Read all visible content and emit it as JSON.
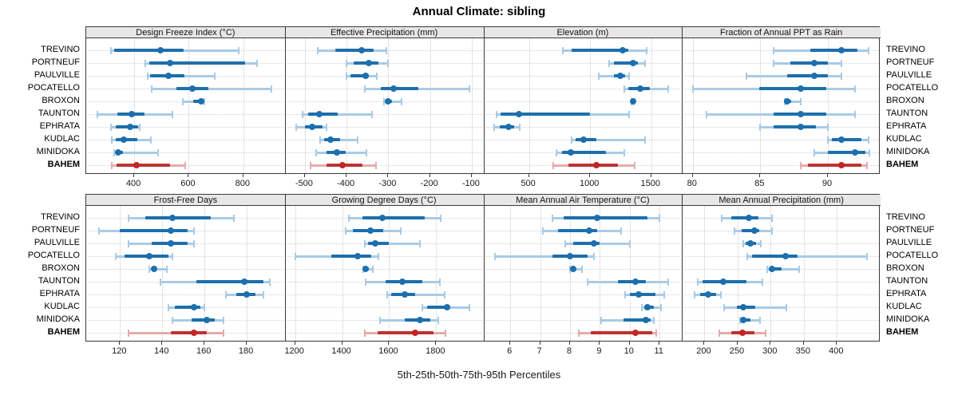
{
  "title": "Annual Climate: sibling",
  "caption": "5th-25th-50th-75th-95th Percentiles",
  "colors": {
    "blue_dark": "#1d6fad",
    "blue_light": "#a9cbe5",
    "blue_dot": "#1d6fad",
    "red_dark": "#bf3131",
    "red_light": "#e5abab",
    "red_dot": "#c32424",
    "grid": "#c9c9c9",
    "border": "#3a3a3a",
    "header_bg": "#e7e7e7"
  },
  "sites": [
    "TREVINO",
    "PORTNEUF",
    "PAULVILLE",
    "POCATELLO",
    "BROXON",
    "TAUNTON",
    "EPHRATA",
    "KUDLAC",
    "MINIDOKA",
    "BAHEM"
  ],
  "highlight_site": "BAHEM",
  "chart_data": {
    "type": "percentile-interval-dotplot",
    "percentiles": [
      5,
      25,
      50,
      75,
      95
    ],
    "rows": [
      "TREVINO",
      "PORTNEUF",
      "PAULVILLE",
      "POCATELLO",
      "BROXON",
      "TAUNTON",
      "EPHRATA",
      "KUDLAC",
      "MINIDOKA",
      "BAHEM"
    ],
    "legend": "thin light bar = 5th-95th, thick dark bar = 25th-75th, dot = 50th percentile; BAHEM drawn in red",
    "panels": [
      {
        "title": "Design Freeze Index (°C)",
        "grid_row": 1,
        "grid_col": 1,
        "xlim": [
          224,
          952
        ],
        "ticks": [
          400,
          600,
          800
        ],
        "series": [
          [
            314,
            327,
            497,
            580,
            784
          ],
          [
            442,
            454,
            532,
            805,
            849
          ],
          [
            448,
            459,
            524,
            585,
            694
          ],
          [
            465,
            555,
            613,
            673,
            903
          ],
          [
            578,
            615,
            644,
            650,
            656
          ],
          [
            265,
            337,
            392,
            439,
            541
          ],
          [
            314,
            332,
            385,
            415,
            420
          ],
          [
            319,
            333,
            363,
            410,
            461
          ],
          [
            325,
            331,
            342,
            360,
            488
          ],
          [
            317,
            335,
            407,
            530,
            586
          ]
        ]
      },
      {
        "title": "Effective Precipitation (mm)",
        "grid_row": 1,
        "grid_col": 2,
        "xlim": [
          -548,
          -72
        ],
        "ticks": [
          -500,
          -400,
          -300,
          -200,
          -100
        ],
        "series": [
          [
            -470,
            -427,
            -363,
            -335,
            -304
          ],
          [
            -400,
            -382,
            -346,
            -324,
            -301
          ],
          [
            -400,
            -390,
            -355,
            -346,
            -327
          ],
          [
            -357,
            -317,
            -287,
            -228,
            -106
          ],
          [
            -311,
            -307,
            -301,
            -291,
            -269
          ],
          [
            -505,
            -492,
            -465,
            -422,
            -339
          ],
          [
            -521,
            -499,
            -483,
            -457,
            -448
          ],
          [
            -464,
            -454,
            -438,
            -416,
            -374
          ],
          [
            -473,
            -448,
            -424,
            -403,
            -352
          ],
          [
            -486,
            -448,
            -410,
            -362,
            -330
          ]
        ]
      },
      {
        "title": "Elevation (m)",
        "grid_row": 1,
        "grid_col": 3,
        "xlim": [
          127,
          1751
        ],
        "ticks": [
          500,
          1000,
          1500
        ],
        "series": [
          [
            777,
            846,
            1267,
            1311,
            1461
          ],
          [
            1156,
            1195,
            1349,
            1391,
            1446
          ],
          [
            1070,
            1192,
            1247,
            1283,
            1317
          ],
          [
            1278,
            1315,
            1413,
            1490,
            1641
          ],
          [
            1337,
            1342,
            1348,
            1354,
            1360
          ],
          [
            236,
            269,
            415,
            999,
            1319
          ],
          [
            215,
            259,
            334,
            378,
            421
          ],
          [
            846,
            879,
            945,
            1053,
            1446
          ],
          [
            727,
            770,
            840,
            1129,
            1282
          ],
          [
            696,
            825,
            1053,
            1229,
            1365
          ]
        ]
      },
      {
        "title": "Fraction of Annual PPT as Rain",
        "grid_row": 1,
        "grid_col": 4,
        "xlim": [
          79.2,
          93.9
        ],
        "ticks": [
          80,
          85,
          90
        ],
        "series": [
          [
            86.0,
            88.7,
            91.0,
            92.2,
            93.0
          ],
          [
            86.0,
            87.2,
            89.0,
            90.0,
            91.0
          ],
          [
            84.0,
            87.0,
            89.0,
            90.0,
            91.0
          ],
          [
            80.0,
            84.9,
            88.0,
            89.9,
            92.0
          ],
          [
            86.8,
            86.9,
            87.0,
            87.3,
            88.0
          ],
          [
            81.0,
            86.0,
            88.0,
            89.9,
            92.0
          ],
          [
            85.0,
            86.0,
            88.0,
            89.1,
            90.0
          ],
          [
            90.0,
            90.3,
            91.0,
            92.5,
            93.0
          ],
          [
            89.0,
            90.0,
            92.0,
            92.8,
            93.1
          ],
          [
            88.0,
            88.5,
            91.0,
            92.5,
            92.9
          ]
        ]
      },
      {
        "title": "Frost-Free Days",
        "grid_row": 2,
        "grid_col": 1,
        "xlim": [
          104,
          198
        ],
        "ticks": [
          120,
          140,
          160,
          180
        ],
        "series": [
          [
            124,
            132,
            145,
            163,
            174
          ],
          [
            110,
            120,
            144,
            152,
            155
          ],
          [
            124,
            135,
            144,
            152,
            155
          ],
          [
            118,
            122,
            134,
            143,
            145
          ],
          [
            134,
            135,
            136,
            137,
            142
          ],
          [
            139,
            156,
            179,
            188,
            191
          ],
          [
            170,
            175,
            180,
            184,
            188
          ],
          [
            143,
            146,
            155,
            158,
            160
          ],
          [
            145,
            154,
            161,
            165,
            169
          ],
          [
            124,
            144,
            155,
            161,
            169
          ]
        ]
      },
      {
        "title": "Growing Degree Days (°C)",
        "grid_row": 2,
        "grid_col": 2,
        "xlim": [
          1156,
          2001
        ],
        "ticks": [
          1200,
          1400,
          1600,
          1800
        ],
        "series": [
          [
            1430,
            1485,
            1570,
            1750,
            1820
          ],
          [
            1415,
            1445,
            1520,
            1575,
            1650
          ],
          [
            1495,
            1510,
            1540,
            1600,
            1730
          ],
          [
            1200,
            1355,
            1465,
            1525,
            1555
          ],
          [
            1490,
            1493,
            1500,
            1512,
            1530
          ],
          [
            1500,
            1585,
            1655,
            1740,
            1815
          ],
          [
            1590,
            1610,
            1665,
            1710,
            1835
          ],
          [
            1740,
            1760,
            1845,
            1860,
            1940
          ],
          [
            1560,
            1665,
            1730,
            1775,
            1810
          ],
          [
            1495,
            1550,
            1710,
            1790,
            1840
          ]
        ]
      },
      {
        "title": "Mean Annual Air Temperature (°C)",
        "grid_row": 2,
        "grid_col": 3,
        "xlim": [
          5.1,
          11.75
        ],
        "ticks": [
          6,
          7,
          8,
          9,
          10,
          11
        ],
        "series": [
          [
            7.4,
            7.8,
            8.9,
            10.6,
            11.0
          ],
          [
            7.1,
            7.6,
            8.65,
            8.9,
            9.7
          ],
          [
            7.85,
            8.1,
            8.8,
            9.0,
            10.0
          ],
          [
            5.5,
            7.4,
            8.0,
            8.6,
            8.8
          ],
          [
            8.0,
            8.05,
            8.1,
            8.2,
            8.4
          ],
          [
            8.6,
            9.6,
            10.2,
            10.55,
            11.3
          ],
          [
            9.85,
            10.0,
            10.3,
            10.85,
            11.15
          ],
          [
            10.4,
            10.5,
            10.6,
            10.8,
            11.05
          ],
          [
            9.05,
            9.8,
            10.55,
            10.7,
            10.8
          ],
          [
            8.3,
            8.7,
            10.2,
            10.75,
            10.9
          ]
        ]
      },
      {
        "title": "Mean Annual Precipitation (mm)",
        "grid_row": 2,
        "grid_col": 4,
        "xlim": [
          166,
          466
        ],
        "ticks": [
          200,
          250,
          300,
          350,
          400
        ],
        "series": [
          [
            226,
            240,
            267,
            282,
            302
          ],
          [
            245,
            256,
            275,
            283,
            302
          ],
          [
            258,
            262,
            270,
            278,
            285
          ],
          [
            265,
            272,
            323,
            340,
            445
          ],
          [
            295,
            298,
            302,
            317,
            343
          ],
          [
            190,
            197,
            228,
            263,
            287
          ],
          [
            185,
            193,
            205,
            217,
            225
          ],
          [
            230,
            249,
            258,
            277,
            324
          ],
          [
            254,
            256,
            258,
            270,
            284
          ],
          [
            222,
            241,
            257,
            275,
            292
          ]
        ]
      }
    ]
  }
}
